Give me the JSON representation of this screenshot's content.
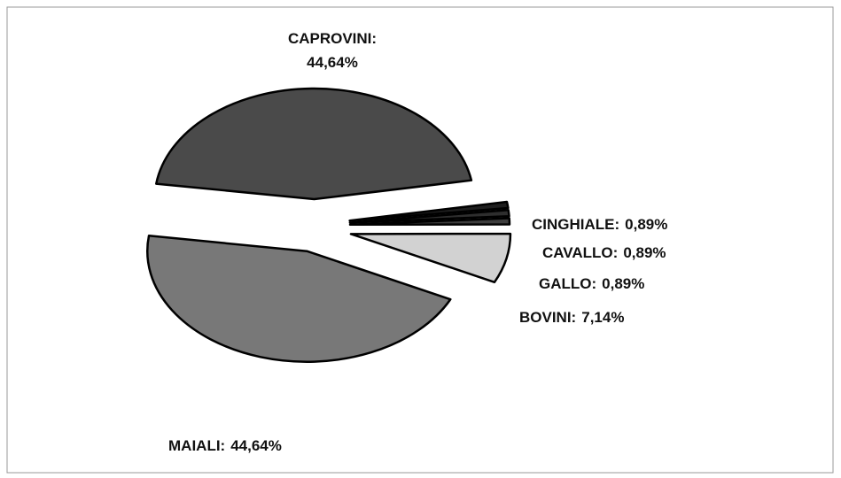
{
  "chart_data": {
    "type": "pie",
    "categories": [
      "CAPROVINI:",
      "CINGHIALE:",
      "CAVALLO:",
      "GALLO:",
      "BOVINI:",
      "MAIALI:"
    ],
    "values": [
      44.64,
      0.89,
      0.89,
      0.89,
      7.14,
      44.64
    ],
    "value_labels": [
      "44,64%",
      "0,89%",
      "0,89%",
      "0,89%",
      "7,14%",
      "44,64%"
    ],
    "colors": [
      "#4a4a4a",
      "#1e1e1e",
      "#2e2e2e",
      "#3e3e3e",
      "#d2d2d2",
      "#787878"
    ]
  }
}
